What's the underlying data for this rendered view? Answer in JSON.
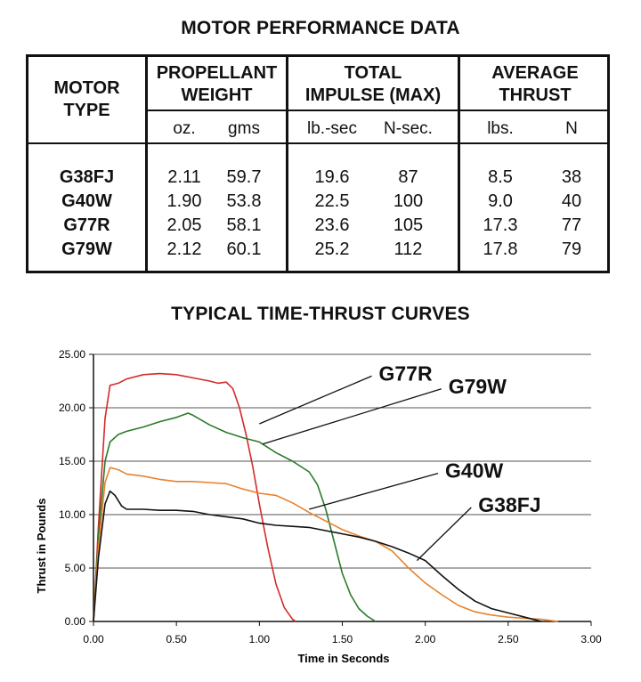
{
  "table": {
    "title": "MOTOR PERFORMANCE DATA",
    "headers": {
      "motor_type_1": "MOTOR",
      "motor_type_2": "TYPE",
      "prop_1": "PROPELLANT",
      "prop_2": "WEIGHT",
      "impulse_1": "TOTAL",
      "impulse_2": "IMPULSE (MAX)",
      "thrust_1": "AVERAGE",
      "thrust_2": "THRUST"
    },
    "units": [
      "oz.",
      "gms",
      "lb.-sec",
      "N-sec.",
      "lbs.",
      "N"
    ],
    "rows": [
      {
        "motor": "G38FJ",
        "oz": "2.11",
        "gms": "59.7",
        "lbsec": "19.6",
        "nsec": "87",
        "lbs": "8.5",
        "n": "38"
      },
      {
        "motor": "G40W",
        "oz": "1.90",
        "gms": "53.8",
        "lbsec": "22.5",
        "nsec": "100",
        "lbs": "9.0",
        "n": "40"
      },
      {
        "motor": "G77R",
        "oz": "2.05",
        "gms": "58.1",
        "lbsec": "23.6",
        "nsec": "105",
        "lbs": "17.3",
        "n": "77"
      },
      {
        "motor": "G79W",
        "oz": "2.12",
        "gms": "60.1",
        "lbsec": "25.2",
        "nsec": "112",
        "lbs": "17.8",
        "n": "79"
      }
    ]
  },
  "chart_data": {
    "type": "line",
    "title": "TYPICAL TIME-THRUST CURVES",
    "xlabel": "Time in Seconds",
    "ylabel": "Thrust in Pounds",
    "xlim": [
      0,
      3
    ],
    "ylim": [
      0,
      25
    ],
    "xticks": [
      "0.00",
      "0.50",
      "1.00",
      "1.50",
      "2.00",
      "2.50",
      "3.00"
    ],
    "yticks": [
      "0.00",
      "5.00",
      "10.00",
      "15.00",
      "20.00",
      "25.00"
    ],
    "grid": "horizontal",
    "series": [
      {
        "name": "G77R",
        "color": "#d42a2a",
        "label_pos": [
          1.72,
          23.3
        ],
        "leader_to": [
          1.0,
          18.5
        ],
        "points": [
          [
            0,
            0
          ],
          [
            0.03,
            9
          ],
          [
            0.07,
            19
          ],
          [
            0.1,
            22.1
          ],
          [
            0.15,
            22.3
          ],
          [
            0.2,
            22.7
          ],
          [
            0.3,
            23.1
          ],
          [
            0.4,
            23.2
          ],
          [
            0.5,
            23.1
          ],
          [
            0.6,
            22.8
          ],
          [
            0.7,
            22.5
          ],
          [
            0.75,
            22.3
          ],
          [
            0.8,
            22.4
          ],
          [
            0.84,
            21.8
          ],
          [
            0.88,
            20.0
          ],
          [
            0.92,
            17.5
          ],
          [
            0.96,
            14.5
          ],
          [
            1.0,
            11.0
          ],
          [
            1.05,
            7.0
          ],
          [
            1.1,
            3.5
          ],
          [
            1.15,
            1.3
          ],
          [
            1.2,
            0.2
          ],
          [
            1.22,
            0
          ]
        ]
      },
      {
        "name": "G79W",
        "color": "#2a7a2a",
        "label_pos": [
          2.14,
          22.1
        ],
        "leader_to": [
          1.02,
          16.6
        ],
        "points": [
          [
            0,
            0
          ],
          [
            0.03,
            8
          ],
          [
            0.07,
            15
          ],
          [
            0.1,
            16.8
          ],
          [
            0.15,
            17.5
          ],
          [
            0.2,
            17.8
          ],
          [
            0.3,
            18.2
          ],
          [
            0.4,
            18.7
          ],
          [
            0.5,
            19.1
          ],
          [
            0.57,
            19.5
          ],
          [
            0.6,
            19.3
          ],
          [
            0.7,
            18.4
          ],
          [
            0.8,
            17.7
          ],
          [
            0.9,
            17.2
          ],
          [
            1.0,
            16.8
          ],
          [
            1.1,
            15.8
          ],
          [
            1.2,
            15.0
          ],
          [
            1.3,
            14.0
          ],
          [
            1.35,
            12.8
          ],
          [
            1.4,
            10.5
          ],
          [
            1.45,
            7.5
          ],
          [
            1.5,
            4.5
          ],
          [
            1.55,
            2.5
          ],
          [
            1.6,
            1.2
          ],
          [
            1.65,
            0.5
          ],
          [
            1.7,
            0
          ]
        ]
      },
      {
        "name": "G40W",
        "color": "#e8822e",
        "label_pos": [
          2.12,
          14.2
        ],
        "leader_to": [
          1.3,
          10.5
        ],
        "points": [
          [
            0,
            0
          ],
          [
            0.03,
            7
          ],
          [
            0.07,
            13
          ],
          [
            0.1,
            14.4
          ],
          [
            0.15,
            14.2
          ],
          [
            0.2,
            13.8
          ],
          [
            0.3,
            13.6
          ],
          [
            0.4,
            13.3
          ],
          [
            0.5,
            13.1
          ],
          [
            0.6,
            13.1
          ],
          [
            0.7,
            13.0
          ],
          [
            0.8,
            12.9
          ],
          [
            0.9,
            12.4
          ],
          [
            1.0,
            12.0
          ],
          [
            1.1,
            11.8
          ],
          [
            1.2,
            11.1
          ],
          [
            1.3,
            10.2
          ],
          [
            1.4,
            9.4
          ],
          [
            1.5,
            8.6
          ],
          [
            1.6,
            8.0
          ],
          [
            1.7,
            7.5
          ],
          [
            1.8,
            6.6
          ],
          [
            1.9,
            5.0
          ],
          [
            2.0,
            3.6
          ],
          [
            2.1,
            2.5
          ],
          [
            2.2,
            1.5
          ],
          [
            2.3,
            0.9
          ],
          [
            2.4,
            0.6
          ],
          [
            2.5,
            0.4
          ],
          [
            2.6,
            0.3
          ],
          [
            2.7,
            0.2
          ],
          [
            2.8,
            0
          ]
        ]
      },
      {
        "name": "G38FJ",
        "color": "#111111",
        "label_pos": [
          2.32,
          11.0
        ],
        "leader_to": [
          1.95,
          5.7
        ],
        "points": [
          [
            0,
            0
          ],
          [
            0.03,
            6
          ],
          [
            0.07,
            11
          ],
          [
            0.1,
            12.2
          ],
          [
            0.13,
            11.8
          ],
          [
            0.17,
            10.8
          ],
          [
            0.2,
            10.5
          ],
          [
            0.3,
            10.5
          ],
          [
            0.4,
            10.4
          ],
          [
            0.5,
            10.4
          ],
          [
            0.6,
            10.3
          ],
          [
            0.7,
            10.0
          ],
          [
            0.8,
            9.8
          ],
          [
            0.9,
            9.6
          ],
          [
            1.0,
            9.2
          ],
          [
            1.1,
            9.0
          ],
          [
            1.2,
            8.9
          ],
          [
            1.3,
            8.8
          ],
          [
            1.4,
            8.5
          ],
          [
            1.5,
            8.2
          ],
          [
            1.6,
            7.9
          ],
          [
            1.7,
            7.5
          ],
          [
            1.8,
            7.0
          ],
          [
            1.9,
            6.4
          ],
          [
            2.0,
            5.7
          ],
          [
            2.1,
            4.3
          ],
          [
            2.2,
            3.0
          ],
          [
            2.3,
            1.9
          ],
          [
            2.4,
            1.2
          ],
          [
            2.5,
            0.8
          ],
          [
            2.6,
            0.4
          ],
          [
            2.7,
            0
          ]
        ]
      }
    ]
  }
}
